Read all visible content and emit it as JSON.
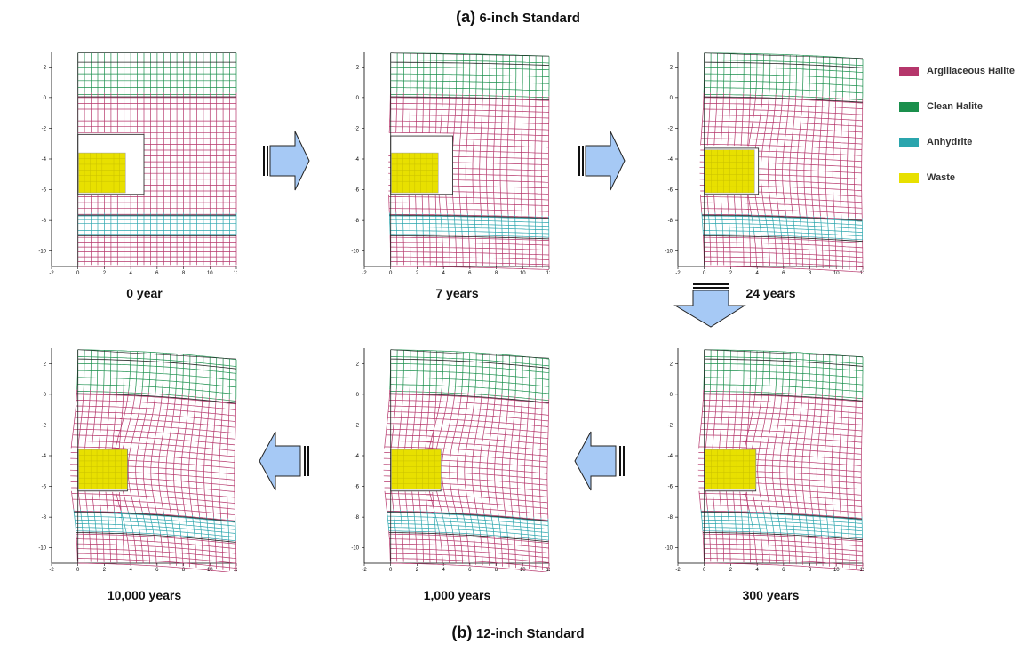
{
  "top_title": {
    "label": "(a)",
    "text": "6-inch Standard"
  },
  "bottom_title": {
    "label": "(b)",
    "text": "12-inch Standard"
  },
  "legend": [
    {
      "label": "Argillaceous Halite",
      "color": "#b5366b"
    },
    {
      "label": "Clean Halite",
      "color": "#1a8f4c"
    },
    {
      "label": "Anhydrite",
      "color": "#2aa5ad"
    },
    {
      "label": "Waste",
      "color": "#e8e000"
    }
  ],
  "axes": {
    "x_ticks": [
      "-2",
      "0",
      "2",
      "4",
      "6",
      "8",
      "10",
      "12"
    ],
    "y_ticks": [
      "2",
      "0",
      "-2",
      "-4",
      "-6",
      "-8",
      "-10"
    ]
  },
  "panels": [
    {
      "caption": "0 year"
    },
    {
      "caption": "7 years"
    },
    {
      "caption": "24 years"
    },
    {
      "caption": "10,000 years"
    },
    {
      "caption": "1,000 years"
    },
    {
      "caption": "300 years"
    }
  ]
}
